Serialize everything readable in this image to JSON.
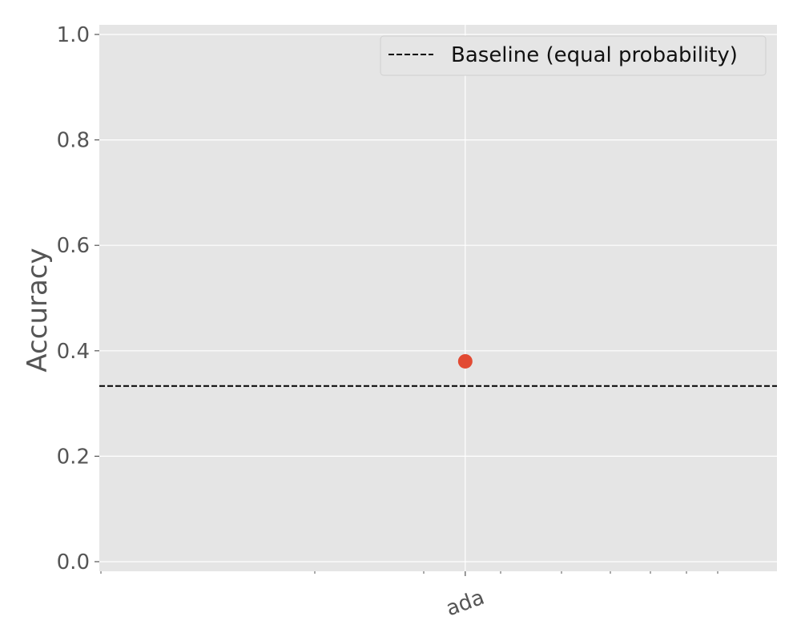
{
  "chart_data": {
    "type": "scatter",
    "title": "",
    "xlabel": "",
    "ylabel": "Accuracy",
    "categories": [
      "ada"
    ],
    "series": [
      {
        "values": [
          0.38
        ],
        "color": "#e24a33"
      }
    ],
    "baseline": {
      "name": "Baseline (equal probability)",
      "value": 0.3333,
      "style": "dashed",
      "color": "#000000"
    },
    "ylim": [
      0,
      1
    ],
    "yticks": [
      0.0,
      0.2,
      0.4,
      0.6,
      0.8,
      1.0
    ],
    "ytick_labels": [
      "0.0",
      "0.2",
      "0.4",
      "0.6",
      "0.8",
      "1.0"
    ],
    "xtick_labels": [
      "ada"
    ],
    "xtick_rotation_deg": -20,
    "grid": true,
    "legend": "top-right",
    "background_color": "#e5e5e5",
    "grid_color": "#ffffff"
  }
}
